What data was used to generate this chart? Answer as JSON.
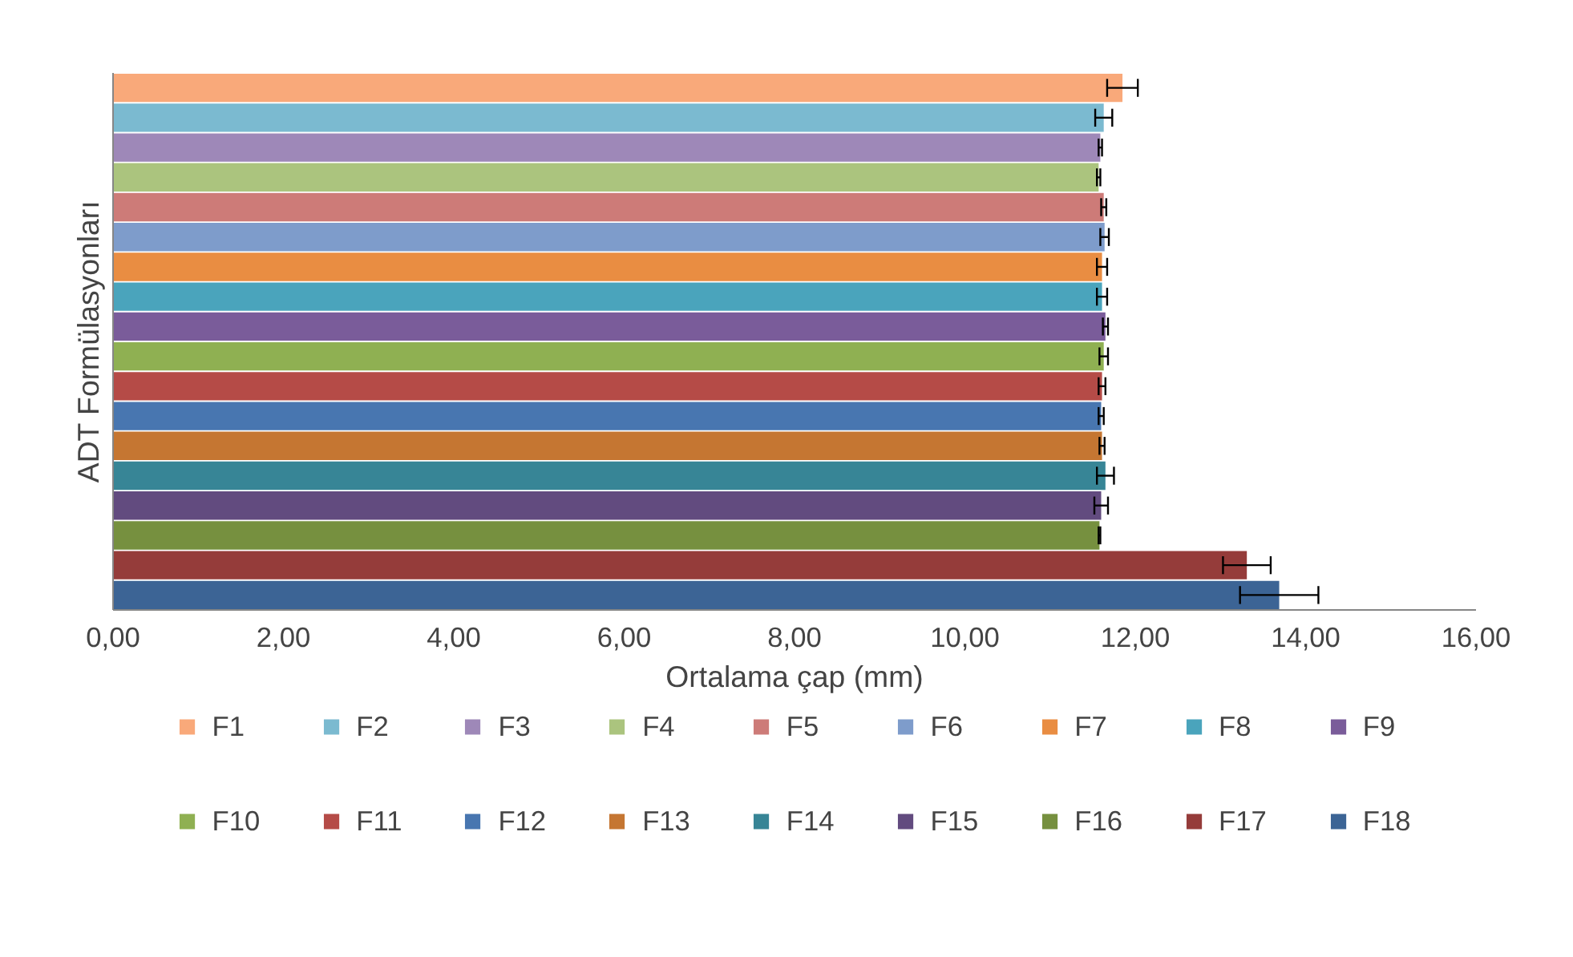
{
  "chart_data": {
    "type": "bar",
    "orientation": "horizontal",
    "xlabel": "Ortalama çap (mm)",
    "ylabel": "ADT Formülasyonları",
    "categories": [
      null,
      null,
      null,
      null,
      null,
      null,
      null,
      null,
      null,
      null,
      null,
      null,
      null,
      null,
      null,
      null,
      null,
      null
    ],
    "xlim": [
      0,
      16
    ],
    "xticks": [
      {
        "value": 0,
        "label": "0,00"
      },
      {
        "value": 2,
        "label": "2,00"
      },
      {
        "value": 4,
        "label": "4,00"
      },
      {
        "value": 6,
        "label": "6,00"
      },
      {
        "value": 8,
        "label": "8,00"
      },
      {
        "value": 10,
        "label": "10,00"
      },
      {
        "value": 12,
        "label": "12,00"
      },
      {
        "value": 14,
        "label": "14,00"
      },
      {
        "value": 16,
        "label": "16,00"
      }
    ],
    "grid": false,
    "legend": "bottom",
    "series": [
      {
        "name": "F1",
        "color": "#f9a97a",
        "values": [
          11.85,
          null,
          null,
          null,
          null,
          null,
          null,
          null,
          null,
          null,
          null,
          null,
          null,
          null,
          null,
          null,
          null,
          null
        ],
        "errors": [
          0.18,
          null,
          null,
          null,
          null,
          null,
          null,
          null,
          null,
          null,
          null,
          null,
          null,
          null,
          null,
          null,
          null,
          null
        ]
      },
      {
        "name": "F2",
        "color": "#7bbad0",
        "values": [
          null,
          11.63,
          null,
          null,
          null,
          null,
          null,
          null,
          null,
          null,
          null,
          null,
          null,
          null,
          null,
          null,
          null,
          null
        ],
        "errors": [
          null,
          0.1,
          null,
          null,
          null,
          null,
          null,
          null,
          null,
          null,
          null,
          null,
          null,
          null,
          null,
          null,
          null,
          null
        ]
      },
      {
        "name": "F3",
        "color": "#9e88b8",
        "values": [
          null,
          null,
          11.59,
          null,
          null,
          null,
          null,
          null,
          null,
          null,
          null,
          null,
          null,
          null,
          null,
          null,
          null,
          null
        ],
        "errors": [
          null,
          null,
          0.02,
          null,
          null,
          null,
          null,
          null,
          null,
          null,
          null,
          null,
          null,
          null,
          null,
          null,
          null,
          null
        ]
      },
      {
        "name": "F4",
        "color": "#abc47e",
        "values": [
          null,
          null,
          null,
          11.57,
          null,
          null,
          null,
          null,
          null,
          null,
          null,
          null,
          null,
          null,
          null,
          null,
          null,
          null
        ],
        "errors": [
          null,
          null,
          null,
          0.02,
          null,
          null,
          null,
          null,
          null,
          null,
          null,
          null,
          null,
          null,
          null,
          null,
          null,
          null
        ]
      },
      {
        "name": "F5",
        "color": "#cd7b78",
        "values": [
          null,
          null,
          null,
          null,
          11.63,
          null,
          null,
          null,
          null,
          null,
          null,
          null,
          null,
          null,
          null,
          null,
          null,
          null
        ],
        "errors": [
          null,
          null,
          null,
          null,
          0.03,
          null,
          null,
          null,
          null,
          null,
          null,
          null,
          null,
          null,
          null,
          null,
          null,
          null
        ]
      },
      {
        "name": "F6",
        "color": "#7e9ccb",
        "values": [
          null,
          null,
          null,
          null,
          null,
          11.64,
          null,
          null,
          null,
          null,
          null,
          null,
          null,
          null,
          null,
          null,
          null,
          null
        ],
        "errors": [
          null,
          null,
          null,
          null,
          null,
          0.05,
          null,
          null,
          null,
          null,
          null,
          null,
          null,
          null,
          null,
          null,
          null,
          null
        ]
      },
      {
        "name": "F7",
        "color": "#e98d42",
        "values": [
          null,
          null,
          null,
          null,
          null,
          null,
          11.61,
          null,
          null,
          null,
          null,
          null,
          null,
          null,
          null,
          null,
          null,
          null
        ],
        "errors": [
          null,
          null,
          null,
          null,
          null,
          null,
          0.06,
          null,
          null,
          null,
          null,
          null,
          null,
          null,
          null,
          null,
          null,
          null
        ]
      },
      {
        "name": "F8",
        "color": "#4aa4bc",
        "values": [
          null,
          null,
          null,
          null,
          null,
          null,
          null,
          11.61,
          null,
          null,
          null,
          null,
          null,
          null,
          null,
          null,
          null,
          null
        ],
        "errors": [
          null,
          null,
          null,
          null,
          null,
          null,
          null,
          0.06,
          null,
          null,
          null,
          null,
          null,
          null,
          null,
          null,
          null,
          null
        ]
      },
      {
        "name": "F9",
        "color": "#7a5c9a",
        "values": [
          null,
          null,
          null,
          null,
          null,
          null,
          null,
          null,
          11.65,
          null,
          null,
          null,
          null,
          null,
          null,
          null,
          null,
          null
        ],
        "errors": [
          null,
          null,
          null,
          null,
          null,
          null,
          null,
          null,
          0.03,
          null,
          null,
          null,
          null,
          null,
          null,
          null,
          null,
          null
        ]
      },
      {
        "name": "F10",
        "color": "#8fb052",
        "values": [
          null,
          null,
          null,
          null,
          null,
          null,
          null,
          null,
          null,
          11.63,
          null,
          null,
          null,
          null,
          null,
          null,
          null,
          null
        ],
        "errors": [
          null,
          null,
          null,
          null,
          null,
          null,
          null,
          null,
          null,
          0.05,
          null,
          null,
          null,
          null,
          null,
          null,
          null,
          null
        ]
      },
      {
        "name": "F11",
        "color": "#b54b47",
        "values": [
          null,
          null,
          null,
          null,
          null,
          null,
          null,
          null,
          null,
          null,
          11.61,
          null,
          null,
          null,
          null,
          null,
          null,
          null
        ],
        "errors": [
          null,
          null,
          null,
          null,
          null,
          null,
          null,
          null,
          null,
          null,
          0.04,
          null,
          null,
          null,
          null,
          null,
          null,
          null
        ]
      },
      {
        "name": "F12",
        "color": "#4876b0",
        "values": [
          null,
          null,
          null,
          null,
          null,
          null,
          null,
          null,
          null,
          null,
          null,
          11.6,
          null,
          null,
          null,
          null,
          null,
          null
        ],
        "errors": [
          null,
          null,
          null,
          null,
          null,
          null,
          null,
          null,
          null,
          null,
          null,
          0.03,
          null,
          null,
          null,
          null,
          null,
          null
        ]
      },
      {
        "name": "F13",
        "color": "#c57632",
        "values": [
          null,
          null,
          null,
          null,
          null,
          null,
          null,
          null,
          null,
          null,
          null,
          null,
          11.61,
          null,
          null,
          null,
          null,
          null
        ],
        "errors": [
          null,
          null,
          null,
          null,
          null,
          null,
          null,
          null,
          null,
          null,
          null,
          null,
          0.03,
          null,
          null,
          null,
          null,
          null
        ]
      },
      {
        "name": "F14",
        "color": "#378596",
        "values": [
          null,
          null,
          null,
          null,
          null,
          null,
          null,
          null,
          null,
          null,
          null,
          null,
          null,
          11.65,
          null,
          null,
          null,
          null
        ],
        "errors": [
          null,
          null,
          null,
          null,
          null,
          null,
          null,
          null,
          null,
          null,
          null,
          null,
          null,
          0.1,
          null,
          null,
          null,
          null
        ]
      },
      {
        "name": "F15",
        "color": "#624b7f",
        "values": [
          null,
          null,
          null,
          null,
          null,
          null,
          null,
          null,
          null,
          null,
          null,
          null,
          null,
          null,
          11.6,
          null,
          null,
          null
        ],
        "errors": [
          null,
          null,
          null,
          null,
          null,
          null,
          null,
          null,
          null,
          null,
          null,
          null,
          null,
          null,
          0.08,
          null,
          null,
          null
        ]
      },
      {
        "name": "F16",
        "color": "#76903f",
        "values": [
          null,
          null,
          null,
          null,
          null,
          null,
          null,
          null,
          null,
          null,
          null,
          null,
          null,
          null,
          null,
          11.58,
          null,
          null
        ],
        "errors": [
          null,
          null,
          null,
          null,
          null,
          null,
          null,
          null,
          null,
          null,
          null,
          null,
          null,
          null,
          null,
          0.01,
          null,
          null
        ]
      },
      {
        "name": "F17",
        "color": "#953c3a",
        "values": [
          null,
          null,
          null,
          null,
          null,
          null,
          null,
          null,
          null,
          null,
          null,
          null,
          null,
          null,
          null,
          null,
          13.31,
          null
        ],
        "errors": [
          null,
          null,
          null,
          null,
          null,
          null,
          null,
          null,
          null,
          null,
          null,
          null,
          null,
          null,
          null,
          null,
          0.28,
          null
        ]
      },
      {
        "name": "F18",
        "color": "#3c6495",
        "values": [
          null,
          null,
          null,
          null,
          null,
          null,
          null,
          null,
          null,
          null,
          null,
          null,
          null,
          null,
          null,
          null,
          null,
          13.69
        ],
        "errors": [
          null,
          null,
          null,
          null,
          null,
          null,
          null,
          null,
          null,
          null,
          null,
          null,
          null,
          null,
          null,
          null,
          null,
          0.46
        ]
      }
    ]
  }
}
